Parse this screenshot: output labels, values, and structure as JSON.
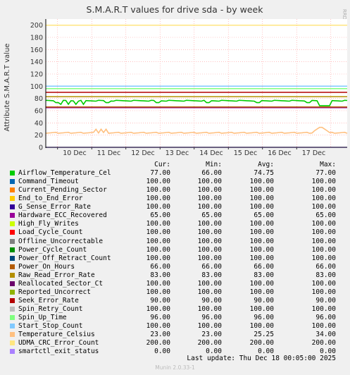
{
  "chart_data": {
    "type": "line",
    "title": "S.M.A.R.T values for drive sda - by week",
    "ylabel": "Attribute S.M.A.R.T value",
    "watermark": "RRDTOOL / TOBI OETIKER",
    "ylim": [
      0,
      210
    ],
    "yticks": [
      0,
      20,
      40,
      60,
      80,
      100,
      120,
      140,
      160,
      180,
      200
    ],
    "xticks": [
      "10 Dec",
      "11 Dec",
      "12 Dec",
      "13 Dec",
      "14 Dec",
      "15 Dec",
      "16 Dec",
      "17 Dec"
    ],
    "grid": true,
    "series": [
      {
        "name": "Airflow_Temperature_Cel",
        "color": "#00cc00",
        "cur": "77.00",
        "min": "66.00",
        "avg": "74.75",
        "max": "77.00"
      },
      {
        "name": "Command_Timeout",
        "color": "#0066b3",
        "cur": "100.00",
        "min": "100.00",
        "avg": "100.00",
        "max": "100.00"
      },
      {
        "name": "Current_Pending_Sector",
        "color": "#ff8000",
        "cur": "100.00",
        "min": "100.00",
        "avg": "100.00",
        "max": "100.00"
      },
      {
        "name": "End_to_End_Error",
        "color": "#ffcc00",
        "cur": "100.00",
        "min": "100.00",
        "avg": "100.00",
        "max": "100.00"
      },
      {
        "name": "G_Sense_Error_Rate",
        "color": "#330099",
        "cur": "100.00",
        "min": "100.00",
        "avg": "100.00",
        "max": "100.00"
      },
      {
        "name": "Hardware_ECC_Recovered",
        "color": "#990099",
        "cur": "65.00",
        "min": "65.00",
        "avg": "65.00",
        "max": "65.00"
      },
      {
        "name": "High_Fly_Writes",
        "color": "#ccff00",
        "cur": "100.00",
        "min": "100.00",
        "avg": "100.00",
        "max": "100.00"
      },
      {
        "name": "Load_Cycle_Count",
        "color": "#ff0000",
        "cur": "100.00",
        "min": "100.00",
        "avg": "100.00",
        "max": "100.00"
      },
      {
        "name": "Offline_Uncorrectable",
        "color": "#808080",
        "cur": "100.00",
        "min": "100.00",
        "avg": "100.00",
        "max": "100.00"
      },
      {
        "name": "Power_Cycle_Count",
        "color": "#008f00",
        "cur": "100.00",
        "min": "100.00",
        "avg": "100.00",
        "max": "100.00"
      },
      {
        "name": "Power_Off_Retract_Count",
        "color": "#00487d",
        "cur": "100.00",
        "min": "100.00",
        "avg": "100.00",
        "max": "100.00"
      },
      {
        "name": "Power_On_Hours",
        "color": "#b35a00",
        "cur": "66.00",
        "min": "66.00",
        "avg": "66.00",
        "max": "66.00"
      },
      {
        "name": "Raw_Read_Error_Rate",
        "color": "#b38f00",
        "cur": "83.00",
        "min": "83.00",
        "avg": "83.00",
        "max": "83.00"
      },
      {
        "name": "Reallocated_Sector_Ct",
        "color": "#6b006b",
        "cur": "100.00",
        "min": "100.00",
        "avg": "100.00",
        "max": "100.00"
      },
      {
        "name": "Reported_Uncorrect",
        "color": "#8fb300",
        "cur": "100.00",
        "min": "100.00",
        "avg": "100.00",
        "max": "100.00"
      },
      {
        "name": "Seek_Error_Rate",
        "color": "#b30000",
        "cur": "90.00",
        "min": "90.00",
        "avg": "90.00",
        "max": "90.00"
      },
      {
        "name": "Spin_Retry_Count",
        "color": "#bebebe",
        "cur": "100.00",
        "min": "100.00",
        "avg": "100.00",
        "max": "100.00"
      },
      {
        "name": "Spin_Up_Time",
        "color": "#80ff80",
        "cur": "96.00",
        "min": "96.00",
        "avg": "96.00",
        "max": "96.00"
      },
      {
        "name": "Start_Stop_Count",
        "color": "#80c9ff",
        "cur": "100.00",
        "min": "100.00",
        "avg": "100.00",
        "max": "100.00"
      },
      {
        "name": "Temperature_Celsius",
        "color": "#ffc080",
        "cur": "23.00",
        "min": "23.00",
        "avg": "25.25",
        "max": "34.00"
      },
      {
        "name": "UDMA_CRC_Error_Count",
        "color": "#ffe680",
        "cur": "200.00",
        "min": "200.00",
        "avg": "200.00",
        "max": "200.00"
      },
      {
        "name": "smartctl_exit_status",
        "color": "#aa80ff",
        "cur": "0.00",
        "min": "0.00",
        "avg": "0.00",
        "max": "0.00"
      }
    ]
  },
  "legend_header": {
    "cur": "Cur:",
    "min": "Min:",
    "avg": "Avg:",
    "max": "Max:"
  },
  "footer": {
    "last_update": "Last update:  Thu Dec 18 00:05:00 2025",
    "munin": "Munin 2.0.33-1"
  }
}
